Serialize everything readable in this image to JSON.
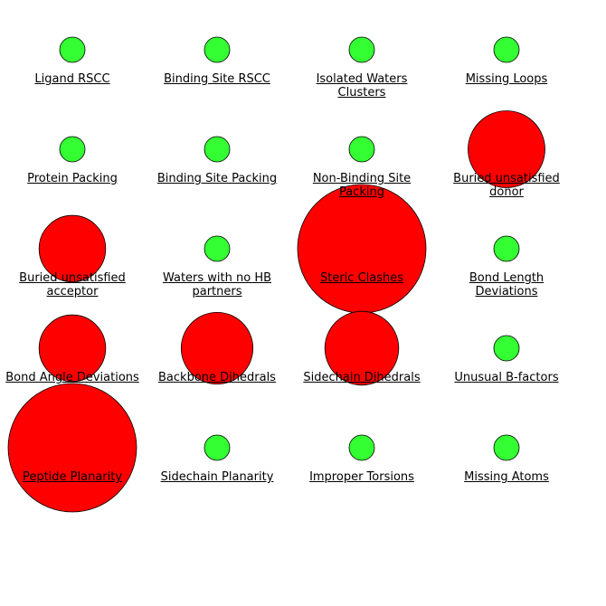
{
  "colors": {
    "pass": "#33ff33",
    "fail": "#ff0000",
    "stroke": "#000000"
  },
  "metrics": [
    {
      "label": "Ligand RSCC",
      "status": "pass",
      "severity": 0
    },
    {
      "label": "Binding Site RSCC",
      "status": "pass",
      "severity": 0
    },
    {
      "label": "Isolated Waters Clusters",
      "status": "pass",
      "severity": 0
    },
    {
      "label": "Missing Loops",
      "status": "pass",
      "severity": 0
    },
    {
      "label": "Protein Packing",
      "status": "pass",
      "severity": 0
    },
    {
      "label": "Binding Site Packing",
      "status": "pass",
      "severity": 0
    },
    {
      "label": "Non-Binding Site Packing",
      "status": "pass",
      "severity": 0
    },
    {
      "label": "Buried unsatisfied donor",
      "status": "fail",
      "severity": 0.5
    },
    {
      "label": "Buried unsatisfied acceptor",
      "status": "fail",
      "severity": 0.4
    },
    {
      "label": "Waters with no HB partners",
      "status": "pass",
      "severity": 0
    },
    {
      "label": "Steric Clashes",
      "status": "fail",
      "severity": 1.0
    },
    {
      "label": "Bond Length Deviations",
      "status": "pass",
      "severity": 0
    },
    {
      "label": "Bond Angle Deviations",
      "status": "fail",
      "severity": 0.4
    },
    {
      "label": "Backbone Dihedrals",
      "status": "fail",
      "severity": 0.45
    },
    {
      "label": "Sidechain Dihedrals",
      "status": "fail",
      "severity": 0.47
    },
    {
      "label": "Unusual B-factors",
      "status": "pass",
      "severity": 0
    },
    {
      "label": "Peptide Planarity",
      "status": "fail",
      "severity": 1.0
    },
    {
      "label": "Sidechain Planarity",
      "status": "pass",
      "severity": 0
    },
    {
      "label": "Improper Torsions",
      "status": "pass",
      "severity": 0
    },
    {
      "label": "Missing Atoms",
      "status": "pass",
      "severity": 0
    }
  ]
}
